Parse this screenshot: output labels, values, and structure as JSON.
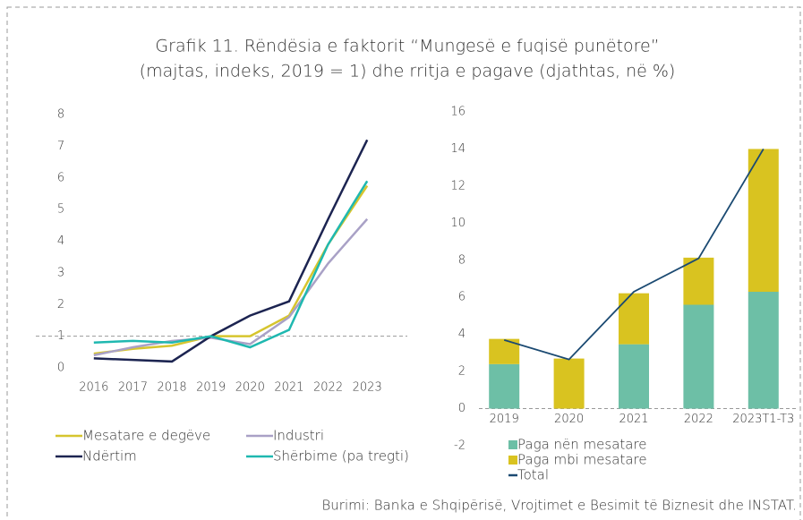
{
  "title": [
    "Grafik 11.  Rëndësia e faktorit “Mungesë e fuqisë punëtore”",
    "(majtas, indeks, 2019 = 1) dhe rritja e pagave (djathtas, në %)"
  ],
  "source": "Burimi: Banka e Shqipërisë, Vrojtimet e Besimit të Biznesit dhe INSTAT.",
  "chart_data": [
    {
      "type": "line",
      "categories": [
        "2016",
        "2017",
        "2018",
        "2019",
        "2020",
        "2021",
        "2022",
        "2023"
      ],
      "ylim": [
        0,
        8
      ],
      "yticks": [
        0,
        1,
        2,
        3,
        4,
        5,
        6,
        7,
        8
      ],
      "reference": 1,
      "series": [
        {
          "name": "Mesatare e degëve",
          "color": "#d6c52e",
          "values": [
            0.45,
            0.6,
            0.7,
            1.0,
            1.0,
            1.65,
            3.9,
            5.75
          ]
        },
        {
          "name": "Industri",
          "color": "#a9a1c6",
          "values": [
            0.4,
            0.65,
            0.85,
            0.95,
            0.75,
            1.6,
            3.3,
            4.7
          ]
        },
        {
          "name": "Ndërtim",
          "color": "#1c2451",
          "values": [
            0.3,
            0.25,
            0.2,
            1.0,
            1.65,
            2.1,
            4.7,
            7.2
          ]
        },
        {
          "name": "Shërbime (pa tregti)",
          "color": "#1fb8b0",
          "values": [
            0.8,
            0.85,
            0.8,
            1.0,
            0.65,
            1.2,
            3.9,
            5.9
          ]
        }
      ]
    },
    {
      "type": "bar",
      "stacked": true,
      "categories": [
        "2019",
        "2020",
        "2021",
        "2022",
        "2023T1-T3"
      ],
      "ylim": [
        -2,
        16
      ],
      "yticks": [
        -2,
        0,
        2,
        4,
        6,
        8,
        10,
        12,
        14,
        16
      ],
      "reference": 0,
      "series": [
        {
          "name": "Paga nën mesatare",
          "color": "#6dbfa6",
          "values": [
            2.4,
            0,
            3.47,
            5.6,
            6.3
          ]
        },
        {
          "name": "Paga mbi mesatare",
          "color": "#d9c320",
          "values": [
            1.36,
            2.7,
            2.75,
            2.54,
            7.7
          ]
        },
        {
          "name": "Total",
          "type": "line",
          "color": "#1b4a72",
          "values": [
            3.7,
            2.65,
            6.3,
            8.1,
            14.0
          ]
        }
      ]
    }
  ]
}
